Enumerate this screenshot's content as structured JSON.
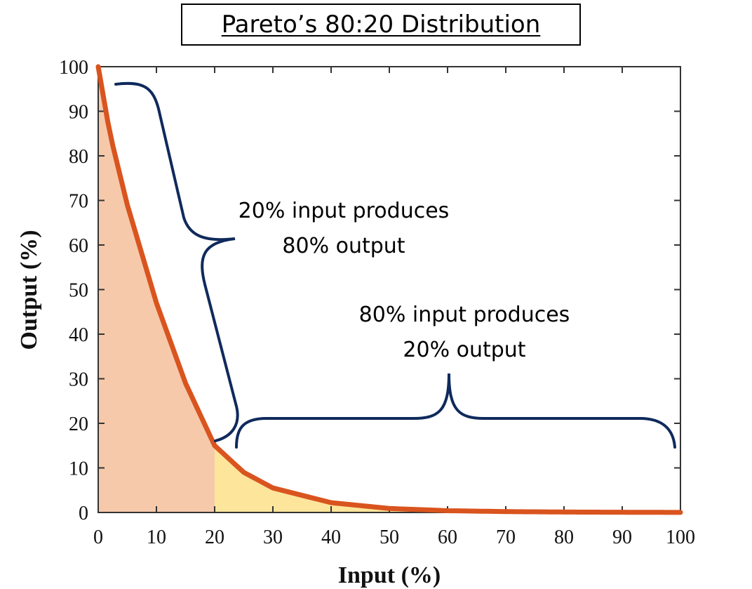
{
  "chart_data": {
    "type": "area",
    "title": "Pareto’s 80:20 Distribution",
    "xlabel": "Input (%)",
    "ylabel": "Output (%)",
    "xlim": [
      0,
      100
    ],
    "ylim": [
      0,
      100
    ],
    "xticks": [
      0,
      10,
      20,
      30,
      40,
      50,
      60,
      70,
      80,
      90,
      100
    ],
    "yticks": [
      0,
      10,
      20,
      30,
      40,
      50,
      60,
      70,
      80,
      90,
      100
    ],
    "grid": false,
    "series": [
      {
        "x": [
          0,
          2,
          5,
          10,
          15,
          20,
          25,
          30,
          40,
          50,
          60,
          70,
          80,
          90,
          100
        ],
        "y": [
          100,
          85,
          69,
          47,
          29,
          15,
          9,
          5.5,
          2.2,
          0.9,
          0.4,
          0.2,
          0.1,
          0.05,
          0.02
        ]
      }
    ],
    "shaded_regions": [
      {
        "x_range": [
          0,
          20
        ]
      },
      {
        "x_range": [
          20,
          60
        ]
      }
    ],
    "annotations": [
      {
        "line1": "20% input produces",
        "line2": "80% output"
      },
      {
        "line1": "80% input produces",
        "line2": "20% output"
      }
    ],
    "colors": {
      "curve": "#d9541e",
      "region_head": "#f6c9ab",
      "region_tail": "#fde59b",
      "brace": "#0f2a5c",
      "axis": "#333333"
    }
  }
}
